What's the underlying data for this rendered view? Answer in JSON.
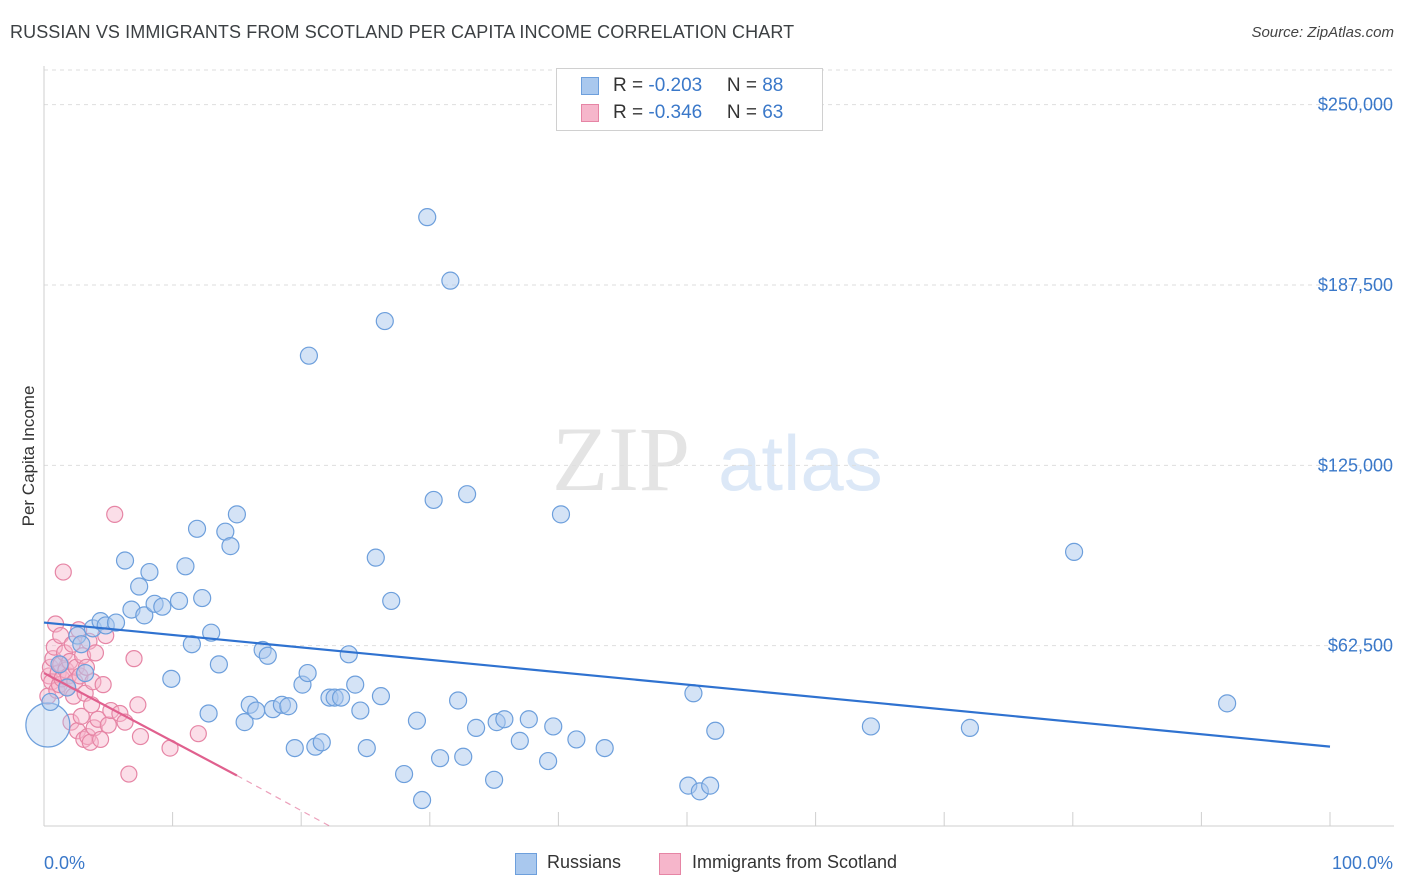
{
  "header": {
    "title": "RUSSIAN VS IMMIGRANTS FROM SCOTLAND PER CAPITA INCOME CORRELATION CHART",
    "source": "Source: ZipAtlas.com"
  },
  "watermark": {
    "zip": "ZIP",
    "atlas": "atlas"
  },
  "legend_top": {
    "rows": [
      {
        "r_label": "R = ",
        "r_value": "-0.203",
        "n_label": "N = ",
        "n_value": "88",
        "color": "#a9c8ee"
      },
      {
        "r_label": "R = ",
        "r_value": "-0.346",
        "n_label": "N = ",
        "n_value": "63",
        "color": "#f6b6cb"
      }
    ]
  },
  "legend_bottom": {
    "russians": "Russians",
    "scotland": "Immigrants from Scotland"
  },
  "colors": {
    "blue_fill": "#a9c8ee",
    "blue_stroke": "#6d9fdc",
    "blue_line": "#2f72d0",
    "pink_fill": "#f6b6cb",
    "pink_stroke": "#e685a5",
    "pink_line": "#e0608e",
    "tick_text": "#3a78c9"
  },
  "chart_data": {
    "type": "scatter",
    "title": "RUSSIAN VS IMMIGRANTS FROM SCOTLAND PER CAPITA INCOME CORRELATION CHART",
    "xlabel": "",
    "ylabel": "Per Capita Income",
    "xlim": [
      0,
      100
    ],
    "ylim": [
      0,
      262000
    ],
    "y_ticks": [
      62500,
      125000,
      187500,
      250000
    ],
    "y_tick_labels": [
      "$62,500",
      "$125,000",
      "$187,500",
      "$250,000"
    ],
    "x_tick_labels": [
      "0.0%",
      "100.0%"
    ],
    "grid": true,
    "legend_position": "top-center",
    "series": [
      {
        "name": "Russians",
        "R": -0.203,
        "N": 88,
        "trend": {
          "x": [
            0,
            100
          ],
          "y": [
            70500,
            27500
          ]
        },
        "points": [
          [
            0.3,
            35000
          ],
          [
            0.5,
            43000
          ],
          [
            1.2,
            56000
          ],
          [
            1.8,
            48000
          ],
          [
            2.6,
            66000
          ],
          [
            2.9,
            63000
          ],
          [
            3.2,
            53000
          ],
          [
            3.8,
            68500
          ],
          [
            4.4,
            71000
          ],
          [
            4.8,
            69500
          ],
          [
            5.6,
            70500
          ],
          [
            6.3,
            92000
          ],
          [
            6.8,
            75000
          ],
          [
            7.4,
            83000
          ],
          [
            7.8,
            73000
          ],
          [
            8.2,
            88000
          ],
          [
            8.6,
            77000
          ],
          [
            9.2,
            76000
          ],
          [
            9.9,
            51000
          ],
          [
            10.5,
            78000
          ],
          [
            11.0,
            90000
          ],
          [
            11.5,
            63000
          ],
          [
            11.9,
            103000
          ],
          [
            12.3,
            79000
          ],
          [
            12.8,
            39000
          ],
          [
            13.0,
            67000
          ],
          [
            13.6,
            56000
          ],
          [
            14.1,
            102000
          ],
          [
            14.5,
            97000
          ],
          [
            15.0,
            108000
          ],
          [
            15.6,
            36000
          ],
          [
            16.0,
            42000
          ],
          [
            16.5,
            40000
          ],
          [
            17.0,
            61000
          ],
          [
            17.4,
            59000
          ],
          [
            17.8,
            40500
          ],
          [
            18.5,
            42000
          ],
          [
            19.0,
            41500
          ],
          [
            19.5,
            27000
          ],
          [
            20.1,
            49000
          ],
          [
            20.5,
            53000
          ],
          [
            20.6,
            163000
          ],
          [
            21.1,
            27500
          ],
          [
            21.6,
            29000
          ],
          [
            22.2,
            44500
          ],
          [
            22.6,
            44500
          ],
          [
            23.1,
            44500
          ],
          [
            23.7,
            59500
          ],
          [
            24.2,
            49000
          ],
          [
            24.6,
            40000
          ],
          [
            25.1,
            27000
          ],
          [
            25.8,
            93000
          ],
          [
            26.2,
            45000
          ],
          [
            26.5,
            175000
          ],
          [
            27.0,
            78000
          ],
          [
            28.0,
            18000
          ],
          [
            29.0,
            36500
          ],
          [
            29.4,
            9000
          ],
          [
            29.8,
            211000
          ],
          [
            30.3,
            113000
          ],
          [
            30.8,
            23500
          ],
          [
            31.6,
            189000
          ],
          [
            32.2,
            43500
          ],
          [
            32.6,
            24000
          ],
          [
            32.9,
            115000
          ],
          [
            33.6,
            34000
          ],
          [
            35.0,
            16000
          ],
          [
            35.2,
            36000
          ],
          [
            35.8,
            37000
          ],
          [
            37.0,
            29500
          ],
          [
            37.7,
            37000
          ],
          [
            39.2,
            22500
          ],
          [
            39.6,
            34500
          ],
          [
            40.2,
            108000
          ],
          [
            41.4,
            30000
          ],
          [
            43.6,
            27000
          ],
          [
            50.1,
            14000
          ],
          [
            50.5,
            46000
          ],
          [
            51.0,
            12000
          ],
          [
            51.8,
            14000
          ],
          [
            52.2,
            33000
          ],
          [
            64.3,
            34500
          ],
          [
            72.0,
            34000
          ],
          [
            80.1,
            95000
          ],
          [
            92.0,
            42500
          ]
        ]
      },
      {
        "name": "Immigrants from Scotland",
        "R": -0.346,
        "N": 63,
        "trend": {
          "x": [
            0,
            15
          ],
          "y": [
            53000,
            17500
          ]
        },
        "trend_dashed": {
          "x": [
            15,
            22.2
          ],
          "y": [
            17500,
            0
          ]
        },
        "points": [
          [
            0.3,
            45000
          ],
          [
            0.4,
            52000
          ],
          [
            0.5,
            55000
          ],
          [
            0.6,
            50000
          ],
          [
            0.7,
            58000
          ],
          [
            0.8,
            62000
          ],
          [
            0.9,
            70000
          ],
          [
            1.0,
            47000
          ],
          [
            1.1,
            53000
          ],
          [
            1.2,
            49000
          ],
          [
            1.3,
            56000
          ],
          [
            1.3,
            66000
          ],
          [
            1.4,
            51000
          ],
          [
            1.5,
            88000
          ],
          [
            1.6,
            60000
          ],
          [
            1.7,
            54000
          ],
          [
            1.8,
            48000
          ],
          [
            1.9,
            52000
          ],
          [
            2.0,
            57000
          ],
          [
            2.1,
            36000
          ],
          [
            2.2,
            63000
          ],
          [
            2.3,
            45000
          ],
          [
            2.4,
            50000
          ],
          [
            2.5,
            55000
          ],
          [
            2.6,
            33000
          ],
          [
            2.7,
            68000
          ],
          [
            2.8,
            52000
          ],
          [
            2.9,
            38000
          ],
          [
            3.0,
            59000
          ],
          [
            3.1,
            30000
          ],
          [
            3.2,
            46000
          ],
          [
            3.3,
            55000
          ],
          [
            3.4,
            31000
          ],
          [
            3.5,
            64000
          ],
          [
            3.6,
            29000
          ],
          [
            3.7,
            42000
          ],
          [
            3.8,
            50000
          ],
          [
            3.9,
            34000
          ],
          [
            4.0,
            60000
          ],
          [
            4.2,
            37000
          ],
          [
            4.4,
            30000
          ],
          [
            4.6,
            49000
          ],
          [
            4.8,
            66000
          ],
          [
            5.0,
            35000
          ],
          [
            5.2,
            40000
          ],
          [
            5.5,
            108000
          ],
          [
            5.9,
            39000
          ],
          [
            6.3,
            36000
          ],
          [
            6.6,
            18000
          ],
          [
            7.0,
            58000
          ],
          [
            7.3,
            42000
          ],
          [
            7.5,
            31000
          ],
          [
            9.8,
            27000
          ],
          [
            12.0,
            32000
          ]
        ]
      }
    ]
  }
}
